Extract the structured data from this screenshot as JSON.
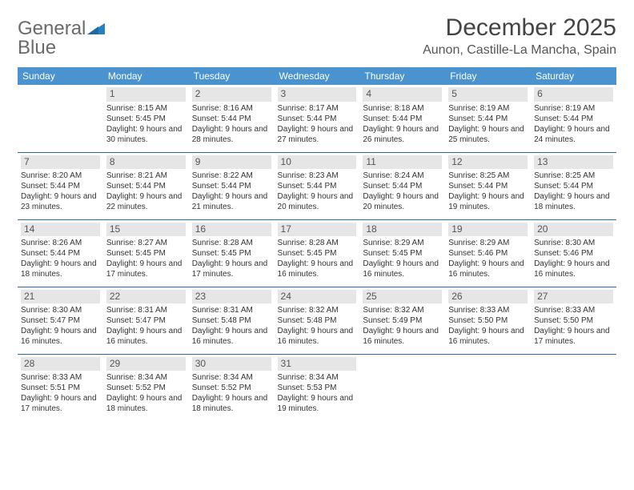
{
  "logo": {
    "word1": "General",
    "word2": "Blue"
  },
  "title": "December 2025",
  "location": "Aunon, Castille-La Mancha, Spain",
  "colors": {
    "header_bg": "#4a93ce",
    "header_text": "#ffffff",
    "rule": "#2a6aa8",
    "daynum_bg": "#e6e6e6",
    "logo_gray": "#6a6a6a",
    "logo_blue": "#2a7fbf"
  },
  "day_headers": [
    "Sunday",
    "Monday",
    "Tuesday",
    "Wednesday",
    "Thursday",
    "Friday",
    "Saturday"
  ],
  "weeks": [
    [
      {
        "n": "",
        "sr": "",
        "ss": "",
        "dl": ""
      },
      {
        "n": "1",
        "sr": "Sunrise: 8:15 AM",
        "ss": "Sunset: 5:45 PM",
        "dl": "Daylight: 9 hours and 30 minutes."
      },
      {
        "n": "2",
        "sr": "Sunrise: 8:16 AM",
        "ss": "Sunset: 5:44 PM",
        "dl": "Daylight: 9 hours and 28 minutes."
      },
      {
        "n": "3",
        "sr": "Sunrise: 8:17 AM",
        "ss": "Sunset: 5:44 PM",
        "dl": "Daylight: 9 hours and 27 minutes."
      },
      {
        "n": "4",
        "sr": "Sunrise: 8:18 AM",
        "ss": "Sunset: 5:44 PM",
        "dl": "Daylight: 9 hours and 26 minutes."
      },
      {
        "n": "5",
        "sr": "Sunrise: 8:19 AM",
        "ss": "Sunset: 5:44 PM",
        "dl": "Daylight: 9 hours and 25 minutes."
      },
      {
        "n": "6",
        "sr": "Sunrise: 8:19 AM",
        "ss": "Sunset: 5:44 PM",
        "dl": "Daylight: 9 hours and 24 minutes."
      }
    ],
    [
      {
        "n": "7",
        "sr": "Sunrise: 8:20 AM",
        "ss": "Sunset: 5:44 PM",
        "dl": "Daylight: 9 hours and 23 minutes."
      },
      {
        "n": "8",
        "sr": "Sunrise: 8:21 AM",
        "ss": "Sunset: 5:44 PM",
        "dl": "Daylight: 9 hours and 22 minutes."
      },
      {
        "n": "9",
        "sr": "Sunrise: 8:22 AM",
        "ss": "Sunset: 5:44 PM",
        "dl": "Daylight: 9 hours and 21 minutes."
      },
      {
        "n": "10",
        "sr": "Sunrise: 8:23 AM",
        "ss": "Sunset: 5:44 PM",
        "dl": "Daylight: 9 hours and 20 minutes."
      },
      {
        "n": "11",
        "sr": "Sunrise: 8:24 AM",
        "ss": "Sunset: 5:44 PM",
        "dl": "Daylight: 9 hours and 20 minutes."
      },
      {
        "n": "12",
        "sr": "Sunrise: 8:25 AM",
        "ss": "Sunset: 5:44 PM",
        "dl": "Daylight: 9 hours and 19 minutes."
      },
      {
        "n": "13",
        "sr": "Sunrise: 8:25 AM",
        "ss": "Sunset: 5:44 PM",
        "dl": "Daylight: 9 hours and 18 minutes."
      }
    ],
    [
      {
        "n": "14",
        "sr": "Sunrise: 8:26 AM",
        "ss": "Sunset: 5:44 PM",
        "dl": "Daylight: 9 hours and 18 minutes."
      },
      {
        "n": "15",
        "sr": "Sunrise: 8:27 AM",
        "ss": "Sunset: 5:45 PM",
        "dl": "Daylight: 9 hours and 17 minutes."
      },
      {
        "n": "16",
        "sr": "Sunrise: 8:28 AM",
        "ss": "Sunset: 5:45 PM",
        "dl": "Daylight: 9 hours and 17 minutes."
      },
      {
        "n": "17",
        "sr": "Sunrise: 8:28 AM",
        "ss": "Sunset: 5:45 PM",
        "dl": "Daylight: 9 hours and 16 minutes."
      },
      {
        "n": "18",
        "sr": "Sunrise: 8:29 AM",
        "ss": "Sunset: 5:45 PM",
        "dl": "Daylight: 9 hours and 16 minutes."
      },
      {
        "n": "19",
        "sr": "Sunrise: 8:29 AM",
        "ss": "Sunset: 5:46 PM",
        "dl": "Daylight: 9 hours and 16 minutes."
      },
      {
        "n": "20",
        "sr": "Sunrise: 8:30 AM",
        "ss": "Sunset: 5:46 PM",
        "dl": "Daylight: 9 hours and 16 minutes."
      }
    ],
    [
      {
        "n": "21",
        "sr": "Sunrise: 8:30 AM",
        "ss": "Sunset: 5:47 PM",
        "dl": "Daylight: 9 hours and 16 minutes."
      },
      {
        "n": "22",
        "sr": "Sunrise: 8:31 AM",
        "ss": "Sunset: 5:47 PM",
        "dl": "Daylight: 9 hours and 16 minutes."
      },
      {
        "n": "23",
        "sr": "Sunrise: 8:31 AM",
        "ss": "Sunset: 5:48 PM",
        "dl": "Daylight: 9 hours and 16 minutes."
      },
      {
        "n": "24",
        "sr": "Sunrise: 8:32 AM",
        "ss": "Sunset: 5:48 PM",
        "dl": "Daylight: 9 hours and 16 minutes."
      },
      {
        "n": "25",
        "sr": "Sunrise: 8:32 AM",
        "ss": "Sunset: 5:49 PM",
        "dl": "Daylight: 9 hours and 16 minutes."
      },
      {
        "n": "26",
        "sr": "Sunrise: 8:33 AM",
        "ss": "Sunset: 5:50 PM",
        "dl": "Daylight: 9 hours and 16 minutes."
      },
      {
        "n": "27",
        "sr": "Sunrise: 8:33 AM",
        "ss": "Sunset: 5:50 PM",
        "dl": "Daylight: 9 hours and 17 minutes."
      }
    ],
    [
      {
        "n": "28",
        "sr": "Sunrise: 8:33 AM",
        "ss": "Sunset: 5:51 PM",
        "dl": "Daylight: 9 hours and 17 minutes."
      },
      {
        "n": "29",
        "sr": "Sunrise: 8:34 AM",
        "ss": "Sunset: 5:52 PM",
        "dl": "Daylight: 9 hours and 18 minutes."
      },
      {
        "n": "30",
        "sr": "Sunrise: 8:34 AM",
        "ss": "Sunset: 5:52 PM",
        "dl": "Daylight: 9 hours and 18 minutes."
      },
      {
        "n": "31",
        "sr": "Sunrise: 8:34 AM",
        "ss": "Sunset: 5:53 PM",
        "dl": "Daylight: 9 hours and 19 minutes."
      },
      {
        "n": "",
        "sr": "",
        "ss": "",
        "dl": ""
      },
      {
        "n": "",
        "sr": "",
        "ss": "",
        "dl": ""
      },
      {
        "n": "",
        "sr": "",
        "ss": "",
        "dl": ""
      }
    ]
  ]
}
